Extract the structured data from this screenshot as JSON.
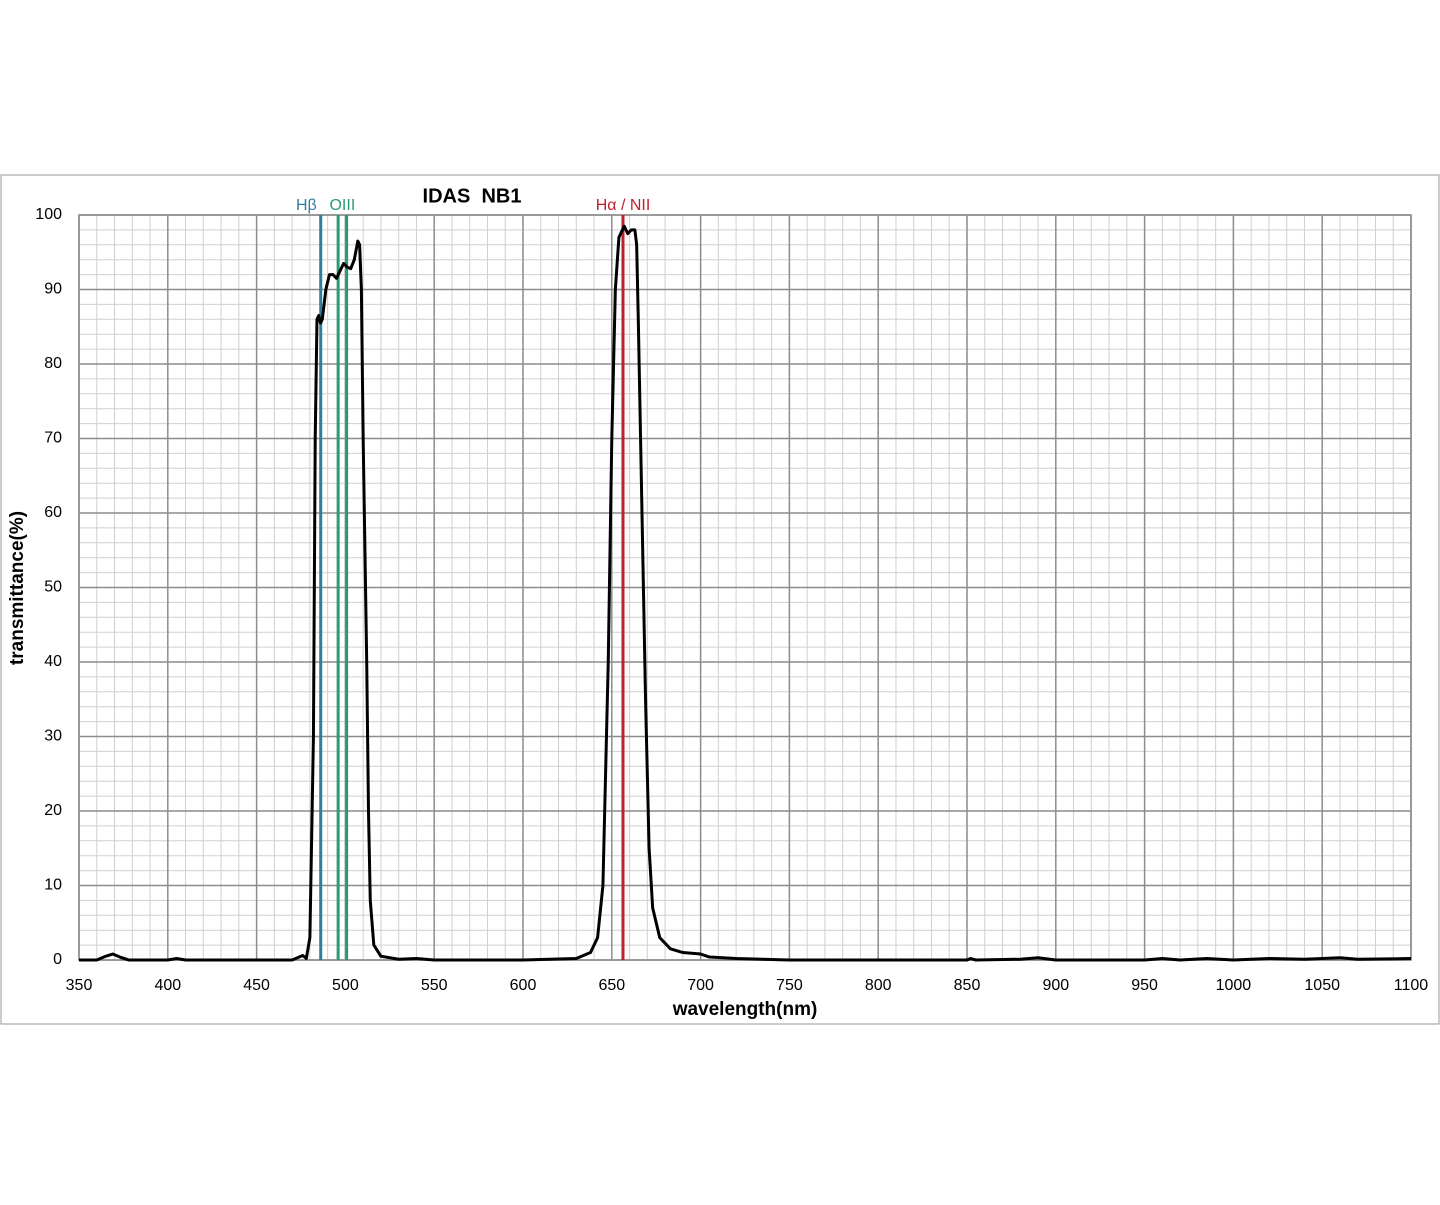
{
  "chart_data": {
    "type": "line",
    "title": "IDAS  NB1",
    "x_label": "wavelength(nm)",
    "y_label": "transmittance(%)",
    "x": [
      350,
      360,
      365,
      369,
      373,
      378,
      400,
      405,
      410,
      450,
      470,
      474,
      476,
      478,
      480,
      482,
      483,
      484,
      485,
      486,
      487,
      489,
      491,
      493,
      495,
      497,
      499,
      501,
      503,
      505,
      507,
      508,
      509,
      510,
      512,
      513,
      514,
      516,
      520,
      530,
      540,
      550,
      600,
      630,
      638,
      642,
      645,
      648,
      650,
      652,
      654,
      657,
      659,
      661,
      663,
      664,
      665,
      667,
      669,
      671,
      673,
      677,
      683,
      690,
      700,
      705,
      720,
      750,
      850,
      852,
      855,
      880,
      890,
      900,
      950,
      960,
      970,
      985,
      1000,
      1020,
      1040,
      1060,
      1070,
      1100
    ],
    "values": [
      0,
      0,
      0.5,
      0.8,
      0.4,
      0,
      0,
      0.2,
      0,
      0,
      0,
      0.4,
      0.6,
      0.2,
      3,
      30,
      70,
      86,
      86.5,
      85.5,
      86,
      90,
      92,
      92,
      91.5,
      92.5,
      93.5,
      93,
      92.8,
      94,
      96.5,
      96,
      90,
      70,
      40,
      20,
      8,
      2,
      0.5,
      0.1,
      0.2,
      0,
      0,
      0.2,
      1,
      3,
      10,
      40,
      70,
      90,
      97,
      98.5,
      97.5,
      98,
      98,
      96,
      85,
      60,
      35,
      15,
      7,
      3,
      1.5,
      1,
      0.8,
      0.4,
      0.2,
      0,
      0,
      0.2,
      0,
      0.1,
      0.3,
      0,
      0,
      0.2,
      0,
      0.2,
      0,
      0.2,
      0.1,
      0.3,
      0.1,
      0.2
    ],
    "color": "#000000",
    "xlim": [
      350,
      1100
    ],
    "xticks": [
      350,
      400,
      450,
      500,
      550,
      600,
      650,
      700,
      750,
      800,
      850,
      900,
      950,
      1000,
      1050,
      1100
    ],
    "ylim": [
      0,
      100
    ],
    "yticks": [
      0,
      10,
      20,
      30,
      40,
      50,
      60,
      70,
      80,
      90,
      100
    ],
    "grid": true,
    "minor_divisions": 5,
    "reference_lines": [
      {
        "label": "Hβ",
        "x": [
          486.1
        ],
        "color": "#2f7f9c"
      },
      {
        "label": "OIII",
        "x": [
          495.9,
          500.7
        ],
        "color": "#2a9a78"
      },
      {
        "label": "Hα / NII",
        "x": [
          656.3
        ],
        "color": "#c0202a"
      }
    ]
  }
}
